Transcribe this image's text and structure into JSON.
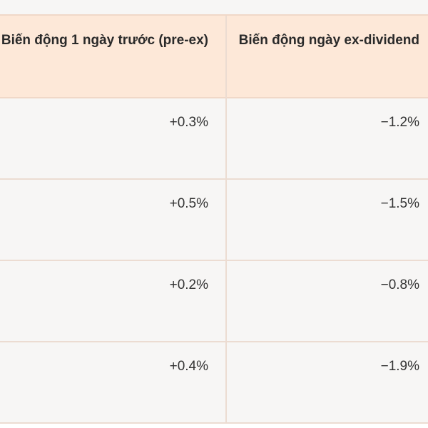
{
  "table": {
    "headers": [
      "Biến động 1 ngày trước (pre-ex)",
      "Biến động ngày ex-dividend"
    ],
    "rows": [
      [
        "+0.3%",
        "−1.2%"
      ],
      [
        "+0.5%",
        "−1.5%"
      ],
      [
        "+0.2%",
        "−0.8%"
      ],
      [
        "+0.4%",
        "−1.9%"
      ]
    ]
  },
  "colors": {
    "header_bg": "#fde8d8",
    "body_bg": "#f7f6f5",
    "border": "#ecdcd2"
  }
}
